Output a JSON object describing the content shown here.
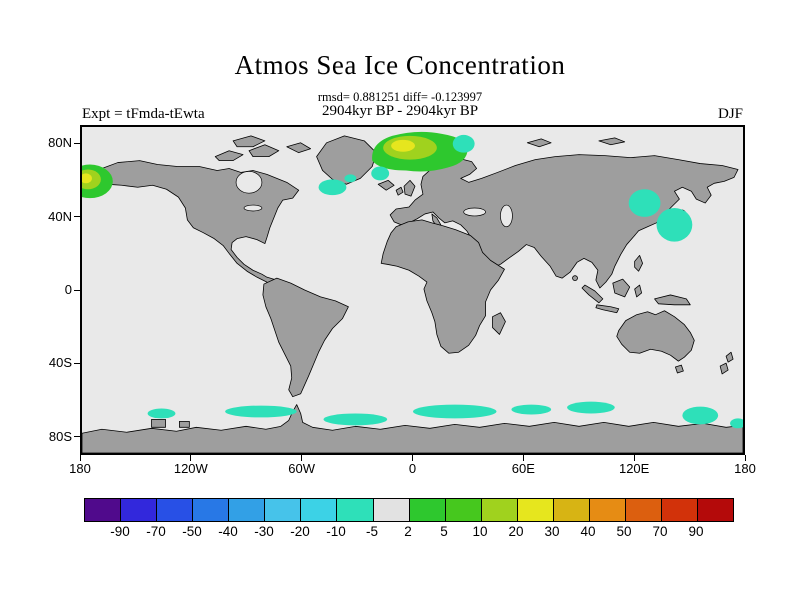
{
  "header": {
    "title": "Atmos Sea Ice Concentration",
    "stats_line": "rmsd= 0.881251 diff= -0.123997",
    "period_line": "2904kyr BP - 2904kyr BP",
    "expt_label": "Expt = tFmda-tEwta",
    "season_label": "DJF"
  },
  "map": {
    "lat_ticks": [
      "80N",
      "40N",
      "0",
      "40S",
      "80S"
    ],
    "lon_ticks": [
      "180",
      "120W",
      "60W",
      "0",
      "60E",
      "120E",
      "180"
    ],
    "land_color": "#9e9e9e",
    "ocean_color": "#e9e9e9",
    "coast_color": "#000000"
  },
  "colorbar": {
    "labels": [
      "-90",
      "-70",
      "-50",
      "-40",
      "-30",
      "-20",
      "-10",
      "-5",
      "2",
      "5",
      "10",
      "20",
      "30",
      "40",
      "50",
      "70",
      "90"
    ],
    "colors": [
      "#500a8c",
      "#3228dc",
      "#2850e6",
      "#2878e6",
      "#32a0e6",
      "#46c3ea",
      "#3cd2e6",
      "#2ee0b9",
      "#e2e2e2",
      "#2ec82e",
      "#46c81e",
      "#a0d21e",
      "#e6e61e",
      "#d7b414",
      "#e68c14",
      "#dc5f0f",
      "#d2320a",
      "#b40a0a"
    ]
  },
  "chart_data": {
    "type": "heatmap",
    "title": "Atmos Sea Ice Concentration",
    "subtitle": "2904kyr BP - 2904kyr BP",
    "season": "DJF",
    "experiment": "Expt = tFmda-tEwta",
    "rmsd": 0.881251,
    "diff": -0.123997,
    "projection": "equirectangular world map, lon 180W-180E, lat 90S-90N",
    "contour_levels": [
      -90,
      -70,
      -50,
      -40,
      -30,
      -20,
      -10,
      -5,
      2,
      5,
      10,
      20,
      30,
      40,
      50,
      70,
      90
    ],
    "axes": {
      "x_ticks": [
        "180",
        "120W",
        "60W",
        "0",
        "60E",
        "120E",
        "180"
      ],
      "y_ticks": [
        "80N",
        "40N",
        "0",
        "40S",
        "80S"
      ]
    },
    "legend_position": "bottom horizontal colorbar",
    "anomaly_regions": [
      {
        "region": "Bering Sea at date line",
        "lat": "55N-68N",
        "lon": "170E-180",
        "value_range": "+2 to +30"
      },
      {
        "region": "Greenland-Barents Sea",
        "lat": "70N-82N",
        "lon": "15W-45E",
        "value_range": "+2 to +30, small -10 to -5 pockets at edges"
      },
      {
        "region": "Southeast Greenland coast",
        "lat": "58N-66N",
        "lon": "45W-30W",
        "value_range": "-10 to -5"
      },
      {
        "region": "Sea of Okhotsk / NW Pacific",
        "lat": "42N-60N",
        "lon": "140E-165E",
        "value_range": "-10 to -5"
      },
      {
        "region": "Antarctic circumpolar coastal band",
        "lat": "72S-58S",
        "lon": "scattered, all longitudes",
        "value_range": "-10 to -5"
      }
    ]
  }
}
